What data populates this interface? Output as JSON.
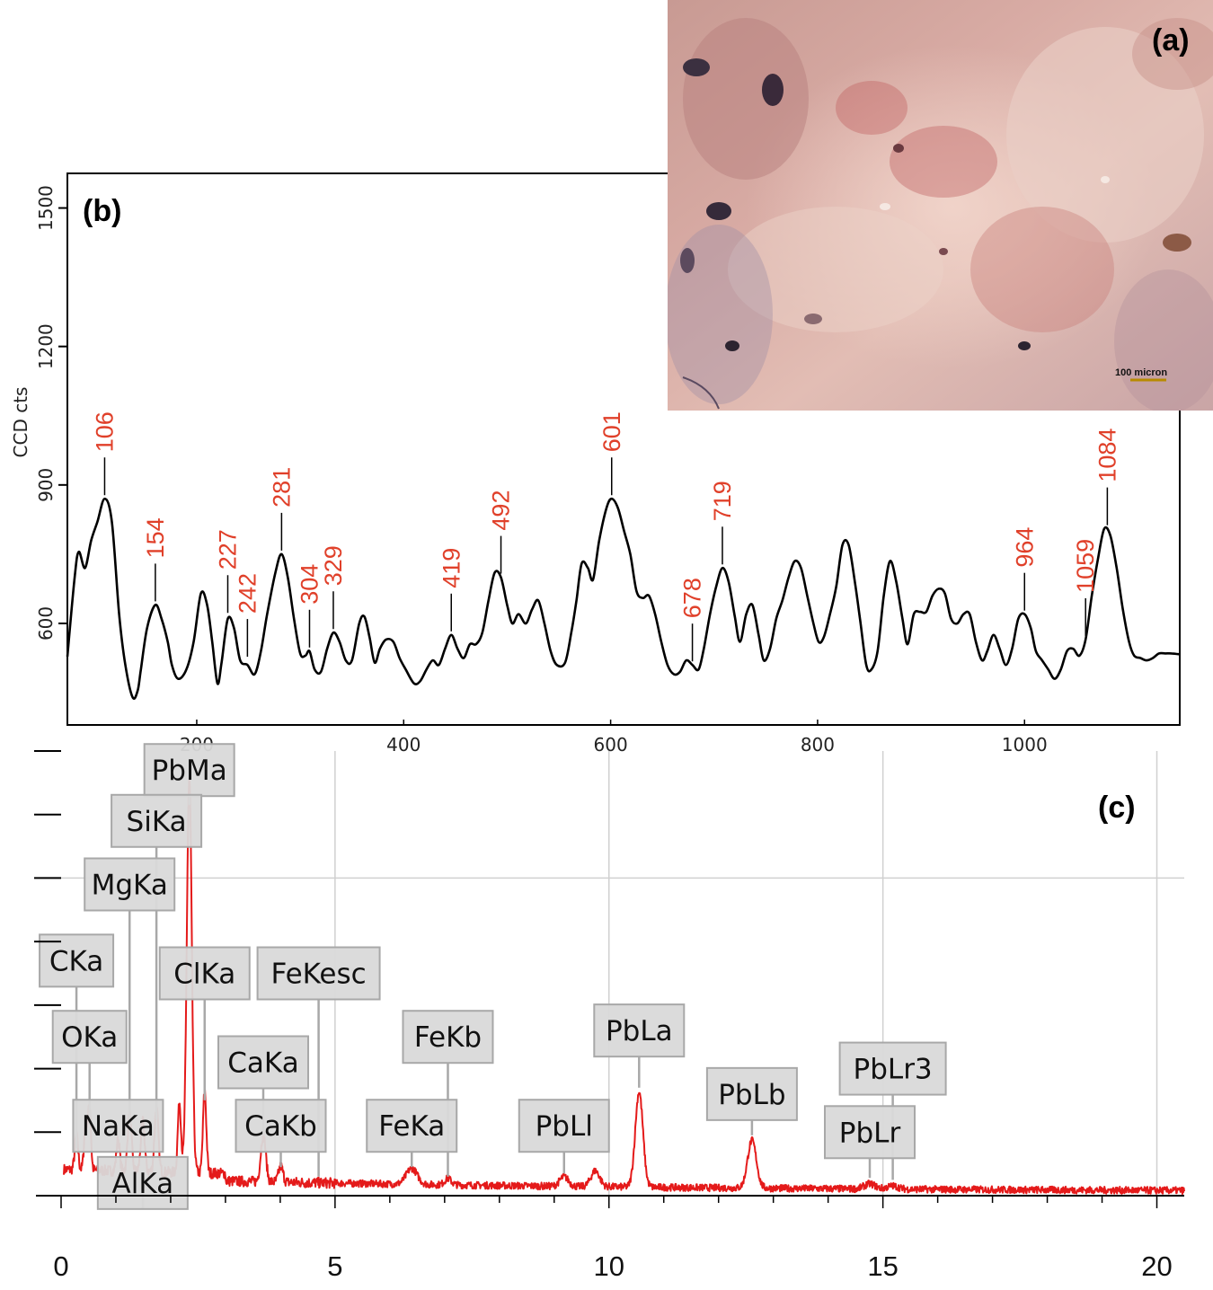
{
  "panels": {
    "a": {
      "tag": "(a)",
      "scale_label": "100 micron",
      "image": "optical micrograph of pink pigment surface"
    },
    "b": {
      "tag": "(b)"
    },
    "c": {
      "tag": "(c)"
    }
  },
  "colors": {
    "raman_line": "#000000",
    "peak_label": "#e0402a",
    "eds_line": "#e41a1a",
    "eds_label_bg": "#d9d9d9",
    "grid": "#d0d0d0"
  },
  "chart_data": [
    {
      "type": "line",
      "panel": "(b)",
      "title": "",
      "xlabel": "",
      "ylabel": "CCD cts",
      "xlim": [
        75,
        1150
      ],
      "ylim": [
        380,
        1575
      ],
      "xticks": [
        200,
        400,
        600,
        800,
        1000
      ],
      "xtick_labels": [
        "200",
        "400",
        "600",
        "800",
        "1000"
      ],
      "yticks": [
        600,
        900,
        1200,
        1500
      ],
      "ytick_labels": [
        "600",
        "900",
        "1200",
        "1500"
      ],
      "points": [
        [
          75,
          528
        ],
        [
          82,
          700
        ],
        [
          86,
          755
        ],
        [
          92,
          720
        ],
        [
          98,
          780
        ],
        [
          104,
          820
        ],
        [
          111,
          870
        ],
        [
          118,
          820
        ],
        [
          125,
          620
        ],
        [
          131,
          510
        ],
        [
          138,
          440
        ],
        [
          143,
          455
        ],
        [
          146,
          500
        ],
        [
          152,
          590
        ],
        [
          160,
          640
        ],
        [
          166,
          610
        ],
        [
          172,
          560
        ],
        [
          176,
          510
        ],
        [
          182,
          480
        ],
        [
          190,
          500
        ],
        [
          197,
          560
        ],
        [
          204,
          665
        ],
        [
          210,
          640
        ],
        [
          215,
          560
        ],
        [
          220,
          470
        ],
        [
          224,
          515
        ],
        [
          230,
          610
        ],
        [
          236,
          590
        ],
        [
          242,
          520
        ],
        [
          249,
          510
        ],
        [
          256,
          490
        ],
        [
          262,
          540
        ],
        [
          268,
          620
        ],
        [
          276,
          710
        ],
        [
          282,
          750
        ],
        [
          288,
          700
        ],
        [
          294,
          610
        ],
        [
          300,
          535
        ],
        [
          305,
          530
        ],
        [
          309,
          540
        ],
        [
          314,
          500
        ],
        [
          320,
          495
        ],
        [
          326,
          545
        ],
        [
          332,
          580
        ],
        [
          338,
          560
        ],
        [
          344,
          520
        ],
        [
          350,
          520
        ],
        [
          357,
          600
        ],
        [
          362,
          615
        ],
        [
          367,
          570
        ],
        [
          372,
          515
        ],
        [
          377,
          545
        ],
        [
          383,
          565
        ],
        [
          390,
          560
        ],
        [
          396,
          525
        ],
        [
          402,
          500
        ],
        [
          410,
          470
        ],
        [
          416,
          475
        ],
        [
          422,
          500
        ],
        [
          428,
          520
        ],
        [
          434,
          510
        ],
        [
          440,
          545
        ],
        [
          446,
          575
        ],
        [
          452,
          545
        ],
        [
          458,
          525
        ],
        [
          464,
          555
        ],
        [
          470,
          555
        ],
        [
          476,
          580
        ],
        [
          482,
          650
        ],
        [
          488,
          710
        ],
        [
          494,
          700
        ],
        [
          500,
          640
        ],
        [
          505,
          600
        ],
        [
          511,
          620
        ],
        [
          518,
          600
        ],
        [
          524,
          630
        ],
        [
          530,
          650
        ],
        [
          536,
          600
        ],
        [
          542,
          540
        ],
        [
          548,
          510
        ],
        [
          556,
          515
        ],
        [
          562,
          580
        ],
        [
          567,
          650
        ],
        [
          572,
          730
        ],
        [
          578,
          720
        ],
        [
          583,
          695
        ],
        [
          589,
          780
        ],
        [
          596,
          850
        ],
        [
          601,
          870
        ],
        [
          607,
          850
        ],
        [
          613,
          800
        ],
        [
          619,
          750
        ],
        [
          625,
          670
        ],
        [
          631,
          655
        ],
        [
          637,
          660
        ],
        [
          643,
          620
        ],
        [
          649,
          560
        ],
        [
          655,
          510
        ],
        [
          661,
          490
        ],
        [
          667,
          495
        ],
        [
          673,
          520
        ],
        [
          679,
          510
        ],
        [
          685,
          500
        ],
        [
          690,
          545
        ],
        [
          696,
          620
        ],
        [
          702,
          680
        ],
        [
          708,
          720
        ],
        [
          714,
          690
        ],
        [
          720,
          615
        ],
        [
          725,
          560
        ],
        [
          731,
          620
        ],
        [
          737,
          640
        ],
        [
          743,
          575
        ],
        [
          748,
          520
        ],
        [
          754,
          545
        ],
        [
          760,
          610
        ],
        [
          766,
          650
        ],
        [
          772,
          700
        ],
        [
          778,
          735
        ],
        [
          784,
          720
        ],
        [
          790,
          660
        ],
        [
          796,
          600
        ],
        [
          801,
          560
        ],
        [
          806,
          570
        ],
        [
          812,
          620
        ],
        [
          818,
          680
        ],
        [
          824,
          770
        ],
        [
          830,
          770
        ],
        [
          836,
          690
        ],
        [
          841,
          610
        ],
        [
          847,
          510
        ],
        [
          852,
          500
        ],
        [
          858,
          540
        ],
        [
          864,
          660
        ],
        [
          870,
          735
        ],
        [
          876,
          690
        ],
        [
          882,
          610
        ],
        [
          887,
          555
        ],
        [
          893,
          620
        ],
        [
          899,
          625
        ],
        [
          905,
          625
        ],
        [
          911,
          660
        ],
        [
          917,
          675
        ],
        [
          923,
          665
        ],
        [
          929,
          610
        ],
        [
          935,
          600
        ],
        [
          941,
          620
        ],
        [
          947,
          620
        ],
        [
          953,
          560
        ],
        [
          959,
          520
        ],
        [
          964,
          540
        ],
        [
          970,
          575
        ],
        [
          976,
          545
        ],
        [
          982,
          510
        ],
        [
          988,
          545
        ],
        [
          994,
          610
        ],
        [
          1000,
          620
        ],
        [
          1006,
          590
        ],
        [
          1011,
          540
        ],
        [
          1017,
          520
        ],
        [
          1023,
          500
        ],
        [
          1029,
          480
        ],
        [
          1035,
          500
        ],
        [
          1041,
          540
        ],
        [
          1047,
          545
        ],
        [
          1053,
          530
        ],
        [
          1059,
          565
        ],
        [
          1065,
          660
        ],
        [
          1071,
          740
        ],
        [
          1077,
          805
        ],
        [
          1083,
          790
        ],
        [
          1089,
          720
        ],
        [
          1095,
          630
        ],
        [
          1101,
          560
        ],
        [
          1106,
          530
        ],
        [
          1112,
          525
        ],
        [
          1118,
          520
        ],
        [
          1124,
          525
        ],
        [
          1130,
          535
        ],
        [
          1136,
          535
        ],
        [
          1142,
          535
        ],
        [
          1150,
          533
        ]
      ],
      "peak_labels": [
        {
          "text": "106",
          "x": 111,
          "y": 870
        },
        {
          "text": "154",
          "x": 160,
          "y": 640
        },
        {
          "text": "227",
          "x": 230,
          "y": 615
        },
        {
          "text": "242",
          "x": 249,
          "y": 520
        },
        {
          "text": "281",
          "x": 282,
          "y": 750
        },
        {
          "text": "304",
          "x": 309,
          "y": 540
        },
        {
          "text": "329",
          "x": 332,
          "y": 580
        },
        {
          "text": "419",
          "x": 446,
          "y": 575
        },
        {
          "text": "492",
          "x": 494,
          "y": 700
        },
        {
          "text": "601",
          "x": 601,
          "y": 870
        },
        {
          "text": "678",
          "x": 679,
          "y": 510
        },
        {
          "text": "719",
          "x": 708,
          "y": 720
        },
        {
          "text": "964",
          "x": 1000,
          "y": 620
        },
        {
          "text": "1059",
          "x": 1059,
          "y": 565
        },
        {
          "text": "1084",
          "x": 1080,
          "y": 805
        }
      ]
    },
    {
      "type": "line",
      "panel": "(c)",
      "title": "",
      "xlabel": "",
      "ylabel": "",
      "xlim": [
        0,
        20.5
      ],
      "ylim": [
        0,
        7
      ],
      "xticks": [
        0,
        5,
        10,
        15,
        20
      ],
      "xtick_labels": [
        "0",
        "5",
        "10",
        "15",
        "20"
      ],
      "gridlines_x": [
        5,
        10,
        15,
        20
      ],
      "gridlines_y": [
        5
      ],
      "baseline": 0.2,
      "peaks": [
        {
          "x": 0.28,
          "y": 0.55,
          "w": 0.03
        },
        {
          "x": 0.45,
          "y": 0.75,
          "w": 0.03
        },
        {
          "x": 0.52,
          "y": 1.0,
          "w": 0.025
        },
        {
          "x": 1.04,
          "y": 0.5,
          "w": 0.03
        },
        {
          "x": 1.25,
          "y": 0.9,
          "w": 0.035
        },
        {
          "x": 1.49,
          "y": 0.8,
          "w": 0.035
        },
        {
          "x": 1.74,
          "y": 1.0,
          "w": 0.035
        },
        {
          "x": 2.16,
          "y": 1.1,
          "w": 0.03
        },
        {
          "x": 2.34,
          "y": 6.2,
          "w": 0.045
        },
        {
          "x": 2.62,
          "y": 1.3,
          "w": 0.03
        },
        {
          "x": 3.69,
          "y": 0.75,
          "w": 0.045
        },
        {
          "x": 4.01,
          "y": 0.25,
          "w": 0.04
        },
        {
          "x": 6.4,
          "y": 0.25,
          "w": 0.1
        },
        {
          "x": 7.06,
          "y": 0.1,
          "w": 0.06
        },
        {
          "x": 9.18,
          "y": 0.15,
          "w": 0.08
        },
        {
          "x": 9.75,
          "y": 0.25,
          "w": 0.08
        },
        {
          "x": 10.55,
          "y": 1.5,
          "w": 0.07
        },
        {
          "x": 12.61,
          "y": 0.75,
          "w": 0.08
        },
        {
          "x": 14.76,
          "y": 0.08,
          "w": 0.1
        },
        {
          "x": 15.18,
          "y": 0.05,
          "w": 0.1
        }
      ],
      "labels": [
        {
          "text": "PbMa",
          "x": 2.34,
          "y": 6.15,
          "level": 6.7
        },
        {
          "text": "SiKa",
          "x": 1.74,
          "y": 1.2,
          "level": 5.9
        },
        {
          "text": "MgKa",
          "x": 1.25,
          "y": 1.1,
          "level": 4.9
        },
        {
          "text": "CKa",
          "x": 0.28,
          "y": 0.75,
          "level": 3.7
        },
        {
          "text": "ClKa",
          "x": 2.62,
          "y": 1.5,
          "level": 3.5
        },
        {
          "text": "FeKesc",
          "x": 4.7,
          "y": 0.3,
          "level": 3.5
        },
        {
          "text": "OKa",
          "x": 0.52,
          "y": 1.2,
          "level": 2.5
        },
        {
          "text": "CaKa",
          "x": 3.69,
          "y": 0.95,
          "level": 2.1
        },
        {
          "text": "FeKb",
          "x": 7.06,
          "y": 0.3,
          "level": 2.5
        },
        {
          "text": "PbLa",
          "x": 10.55,
          "y": 1.7,
          "level": 2.6
        },
        {
          "text": "PbLr3",
          "x": 15.18,
          "y": 0.25,
          "level": 2.0
        },
        {
          "text": "PbLb",
          "x": 12.61,
          "y": 0.95,
          "level": 1.6
        },
        {
          "text": "NaKa",
          "x": 1.04,
          "y": 0.7,
          "level": 1.1
        },
        {
          "text": "CaKb",
          "x": 4.01,
          "y": 0.45,
          "level": 1.1
        },
        {
          "text": "FeKa",
          "x": 6.4,
          "y": 0.45,
          "level": 1.1
        },
        {
          "text": "PbLl",
          "x": 9.18,
          "y": 0.35,
          "level": 1.1
        },
        {
          "text": "PbLr",
          "x": 14.76,
          "y": 0.28,
          "level": 1.0
        },
        {
          "text": "AlKa",
          "x": 1.49,
          "y": 0.2,
          "level": 0.2
        }
      ]
    }
  ]
}
